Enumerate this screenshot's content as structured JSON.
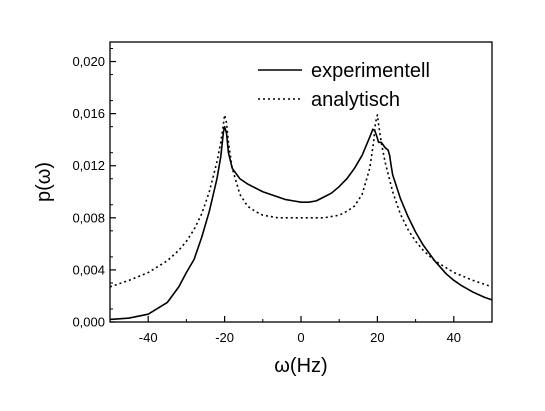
{
  "chart_data": {
    "type": "line",
    "title": "",
    "xlabel": "ω(Hz)",
    "ylabel": "p(ω)",
    "xlim": [
      -50,
      50
    ],
    "ylim": [
      0,
      0.0215
    ],
    "x_ticks": [
      -40,
      -20,
      0,
      20,
      40
    ],
    "x_tick_labels": [
      "-40",
      "-20",
      "0",
      "20",
      "40"
    ],
    "y_ticks": [
      0,
      0.004,
      0.008,
      0.012,
      0.016,
      0.02
    ],
    "y_tick_labels": [
      "0,000",
      "0,004",
      "0,008",
      "0,012",
      "0,016",
      "0,020"
    ],
    "grid": false,
    "legend_position": "top-right",
    "series": [
      {
        "name": "experimentell",
        "style": "solid",
        "color": "#000000",
        "x": [
          -50,
          -45,
          -40,
          -35,
          -32,
          -30,
          -28,
          -26,
          -24,
          -22,
          -21,
          -20.3,
          -20,
          -19.5,
          -19,
          -18,
          -16,
          -14,
          -12,
          -10,
          -8,
          -6,
          -4,
          -2,
          0,
          2,
          4,
          6,
          8,
          10,
          12,
          14,
          16,
          17,
          18,
          18.8,
          19.3,
          19.8,
          20.3,
          21,
          22,
          22.8,
          23.2,
          23.6,
          24,
          25,
          26,
          28,
          30,
          32,
          35,
          38,
          40,
          42,
          45,
          48,
          50
        ],
        "y": [
          0.0002,
          0.0003,
          0.0006,
          0.0015,
          0.0027,
          0.0038,
          0.0048,
          0.0065,
          0.0085,
          0.011,
          0.0127,
          0.0146,
          0.015,
          0.0145,
          0.013,
          0.0118,
          0.011,
          0.0106,
          0.0103,
          0.01,
          0.0098,
          0.0096,
          0.0094,
          0.0093,
          0.0092,
          0.0092,
          0.0093,
          0.0096,
          0.0099,
          0.0104,
          0.011,
          0.0118,
          0.0128,
          0.0135,
          0.0142,
          0.0148,
          0.0147,
          0.0143,
          0.0138,
          0.0138,
          0.0134,
          0.0132,
          0.0128,
          0.012,
          0.0113,
          0.0104,
          0.0095,
          0.0081,
          0.0069,
          0.0059,
          0.0047,
          0.0037,
          0.0032,
          0.0028,
          0.0023,
          0.0019,
          0.0017
        ]
      },
      {
        "name": "analytisch",
        "style": "dotted",
        "color": "#000000",
        "x": [
          -50,
          -45,
          -40,
          -35,
          -32,
          -30,
          -28,
          -26,
          -24,
          -22,
          -21,
          -20.3,
          -20,
          -19.5,
          -19,
          -18,
          -16,
          -14,
          -12,
          -10,
          -8,
          -6,
          -4,
          -2,
          0,
          2,
          4,
          6,
          8,
          10,
          12,
          14,
          16,
          18,
          19,
          19.5,
          20,
          20.3,
          21,
          22,
          24,
          26,
          28,
          30,
          32,
          35,
          40,
          45,
          50
        ],
        "y": [
          0.0027,
          0.0032,
          0.0038,
          0.0047,
          0.0055,
          0.0062,
          0.0071,
          0.0083,
          0.01,
          0.0123,
          0.0138,
          0.0152,
          0.0159,
          0.0153,
          0.0138,
          0.0118,
          0.0098,
          0.0089,
          0.0085,
          0.0082,
          0.0081,
          0.008,
          0.008,
          0.008,
          0.008,
          0.008,
          0.008,
          0.008,
          0.0081,
          0.0082,
          0.0085,
          0.0089,
          0.0098,
          0.0118,
          0.0138,
          0.0153,
          0.0159,
          0.0152,
          0.0138,
          0.0123,
          0.01,
          0.0083,
          0.0071,
          0.0062,
          0.0055,
          0.0047,
          0.0038,
          0.0032,
          0.0027
        ]
      }
    ]
  }
}
